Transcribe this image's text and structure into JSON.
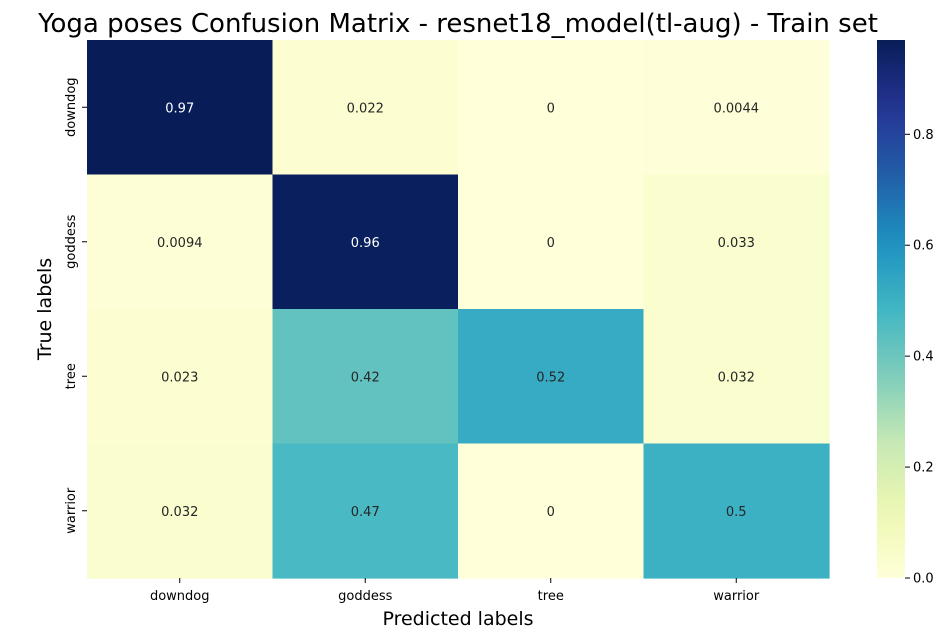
{
  "chart_data": {
    "type": "heatmap",
    "title": "Yoga poses Confusion Matrix - resnet18_model(tl-aug) - Train set",
    "xlabel": "Predicted labels",
    "ylabel": "True labels",
    "x_categories": [
      "downdog",
      "goddess",
      "tree",
      "warrior"
    ],
    "y_categories": [
      "downdog",
      "goddess",
      "tree",
      "warrior"
    ],
    "values": [
      [
        0.97,
        0.022,
        0,
        0.0044
      ],
      [
        0.0094,
        0.96,
        0,
        0.033
      ],
      [
        0.023,
        0.42,
        0.52,
        0.032
      ],
      [
        0.032,
        0.47,
        0,
        0.5
      ]
    ],
    "cell_labels": [
      [
        "0.97",
        "0.022",
        "0",
        "0.0044"
      ],
      [
        "0.0094",
        "0.96",
        "0",
        "0.033"
      ],
      [
        "0.023",
        "0.42",
        "0.52",
        "0.032"
      ],
      [
        "0.032",
        "0.47",
        "0",
        "0.5"
      ]
    ],
    "colormap": "YlGnBu",
    "color_range": [
      0,
      0.97
    ],
    "colorbar_ticks": [
      0.0,
      0.2,
      0.4,
      0.6,
      0.8
    ],
    "colorbar_tick_labels": [
      "0.0",
      "0.2",
      "0.4",
      "0.6",
      "0.8"
    ]
  }
}
